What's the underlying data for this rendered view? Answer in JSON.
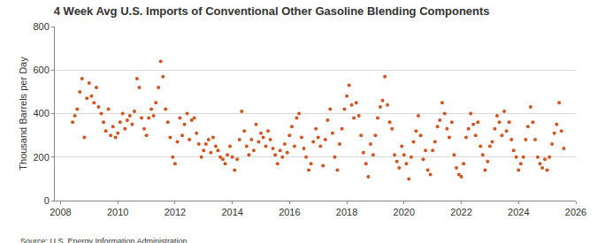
{
  "chart_data": {
    "type": "scatter",
    "title": "4 Week Avg U.S. Imports of Conventional Other Gasoline Blending Components",
    "y_label": "Thousand Barrels per Day",
    "source": "Source: U.S. Energy Information Administration",
    "color": "#d2541e",
    "marker": "circle",
    "grid": true,
    "xlim": [
      2007.8,
      2026
    ],
    "xticks": [
      2008,
      2010,
      2012,
      2014,
      2016,
      2018,
      2020,
      2022,
      2024,
      2026
    ],
    "ylim": [
      0,
      800
    ],
    "yticks": [
      0,
      200,
      400,
      600,
      800
    ],
    "x": [
      2008.42,
      2008.5,
      2008.58,
      2008.67,
      2008.75,
      2008.83,
      2008.92,
      2009.0,
      2009.08,
      2009.17,
      2009.25,
      2009.33,
      2009.42,
      2009.5,
      2009.58,
      2009.67,
      2009.75,
      2009.83,
      2009.92,
      2010.0,
      2010.08,
      2010.17,
      2010.25,
      2010.33,
      2010.42,
      2010.5,
      2010.58,
      2010.67,
      2010.75,
      2010.83,
      2010.92,
      2011.0,
      2011.08,
      2011.17,
      2011.25,
      2011.33,
      2011.42,
      2011.5,
      2011.58,
      2011.67,
      2011.75,
      2011.83,
      2011.92,
      2012.0,
      2012.08,
      2012.17,
      2012.25,
      2012.33,
      2012.42,
      2012.5,
      2012.58,
      2012.67,
      2012.75,
      2012.83,
      2012.92,
      2013.0,
      2013.08,
      2013.17,
      2013.25,
      2013.33,
      2013.42,
      2013.5,
      2013.58,
      2013.67,
      2013.75,
      2013.83,
      2013.92,
      2014.0,
      2014.08,
      2014.17,
      2014.25,
      2014.33,
      2014.42,
      2014.5,
      2014.58,
      2014.67,
      2014.75,
      2014.83,
      2014.92,
      2015.0,
      2015.08,
      2015.17,
      2015.25,
      2015.33,
      2015.42,
      2015.5,
      2015.58,
      2015.67,
      2015.75,
      2015.83,
      2015.92,
      2016.0,
      2016.08,
      2016.17,
      2016.25,
      2016.33,
      2016.42,
      2016.5,
      2016.58,
      2016.67,
      2016.75,
      2016.83,
      2016.92,
      2017.0,
      2017.08,
      2017.17,
      2017.25,
      2017.33,
      2017.42,
      2017.5,
      2017.58,
      2017.67,
      2017.75,
      2017.83,
      2017.92,
      2018.0,
      2018.08,
      2018.17,
      2018.25,
      2018.33,
      2018.42,
      2018.5,
      2018.58,
      2018.67,
      2018.75,
      2018.83,
      2018.92,
      2019.0,
      2019.08,
      2019.17,
      2019.25,
      2019.33,
      2019.42,
      2019.5,
      2019.58,
      2019.67,
      2019.75,
      2019.83,
      2019.92,
      2020.0,
      2020.08,
      2020.17,
      2020.25,
      2020.33,
      2020.42,
      2020.5,
      2020.58,
      2020.67,
      2020.75,
      2020.83,
      2020.92,
      2021.0,
      2021.08,
      2021.17,
      2021.25,
      2021.33,
      2021.42,
      2021.5,
      2021.58,
      2021.67,
      2021.75,
      2021.83,
      2021.92,
      2022.0,
      2022.08,
      2022.17,
      2022.25,
      2022.33,
      2022.42,
      2022.5,
      2022.58,
      2022.67,
      2022.75,
      2022.83,
      2022.92,
      2023.0,
      2023.08,
      2023.17,
      2023.25,
      2023.33,
      2023.42,
      2023.5,
      2023.58,
      2023.67,
      2023.75,
      2023.83,
      2023.92,
      2024.0,
      2024.08,
      2024.17,
      2024.25,
      2024.33,
      2024.42,
      2024.5,
      2024.58,
      2024.67,
      2024.75,
      2024.83,
      2024.92,
      2025.0,
      2025.08,
      2025.17,
      2025.25,
      2025.33,
      2025.42,
      2025.5,
      2025.58
    ],
    "values": [
      360,
      390,
      420,
      500,
      560,
      290,
      470,
      540,
      480,
      450,
      520,
      430,
      400,
      360,
      320,
      420,
      300,
      340,
      290,
      310,
      360,
      400,
      330,
      370,
      390,
      350,
      410,
      560,
      520,
      380,
      330,
      300,
      380,
      420,
      390,
      450,
      520,
      640,
      570,
      420,
      360,
      290,
      200,
      170,
      270,
      380,
      300,
      350,
      400,
      280,
      370,
      380,
      310,
      260,
      200,
      230,
      260,
      280,
      220,
      290,
      250,
      230,
      200,
      190,
      170,
      210,
      250,
      200,
      140,
      190,
      280,
      410,
      320,
      250,
      210,
      280,
      230,
      350,
      270,
      310,
      290,
      250,
      320,
      280,
      240,
      210,
      170,
      230,
      200,
      260,
      220,
      300,
      340,
      250,
      380,
      400,
      290,
      240,
      200,
      140,
      170,
      270,
      330,
      290,
      250,
      160,
      280,
      370,
      420,
      310,
      200,
      140,
      260,
      330,
      420,
      480,
      530,
      440,
      380,
      450,
      390,
      300,
      220,
      170,
      110,
      260,
      210,
      300,
      380,
      430,
      460,
      570,
      440,
      360,
      330,
      210,
      180,
      150,
      250,
      210,
      170,
      100,
      200,
      270,
      320,
      390,
      300,
      190,
      230,
      140,
      120,
      230,
      270,
      340,
      370,
      450,
      400,
      330,
      290,
      360,
      210,
      150,
      120,
      110,
      170,
      290,
      330,
      400,
      350,
      300,
      360,
      250,
      210,
      140,
      180,
      250,
      270,
      330,
      390,
      360,
      300,
      410,
      320,
      360,
      280,
      230,
      200,
      140,
      170,
      200,
      280,
      340,
      430,
      360,
      280,
      200,
      170,
      150,
      190,
      140,
      200,
      260,
      310,
      350,
      450,
      320,
      240
    ]
  }
}
